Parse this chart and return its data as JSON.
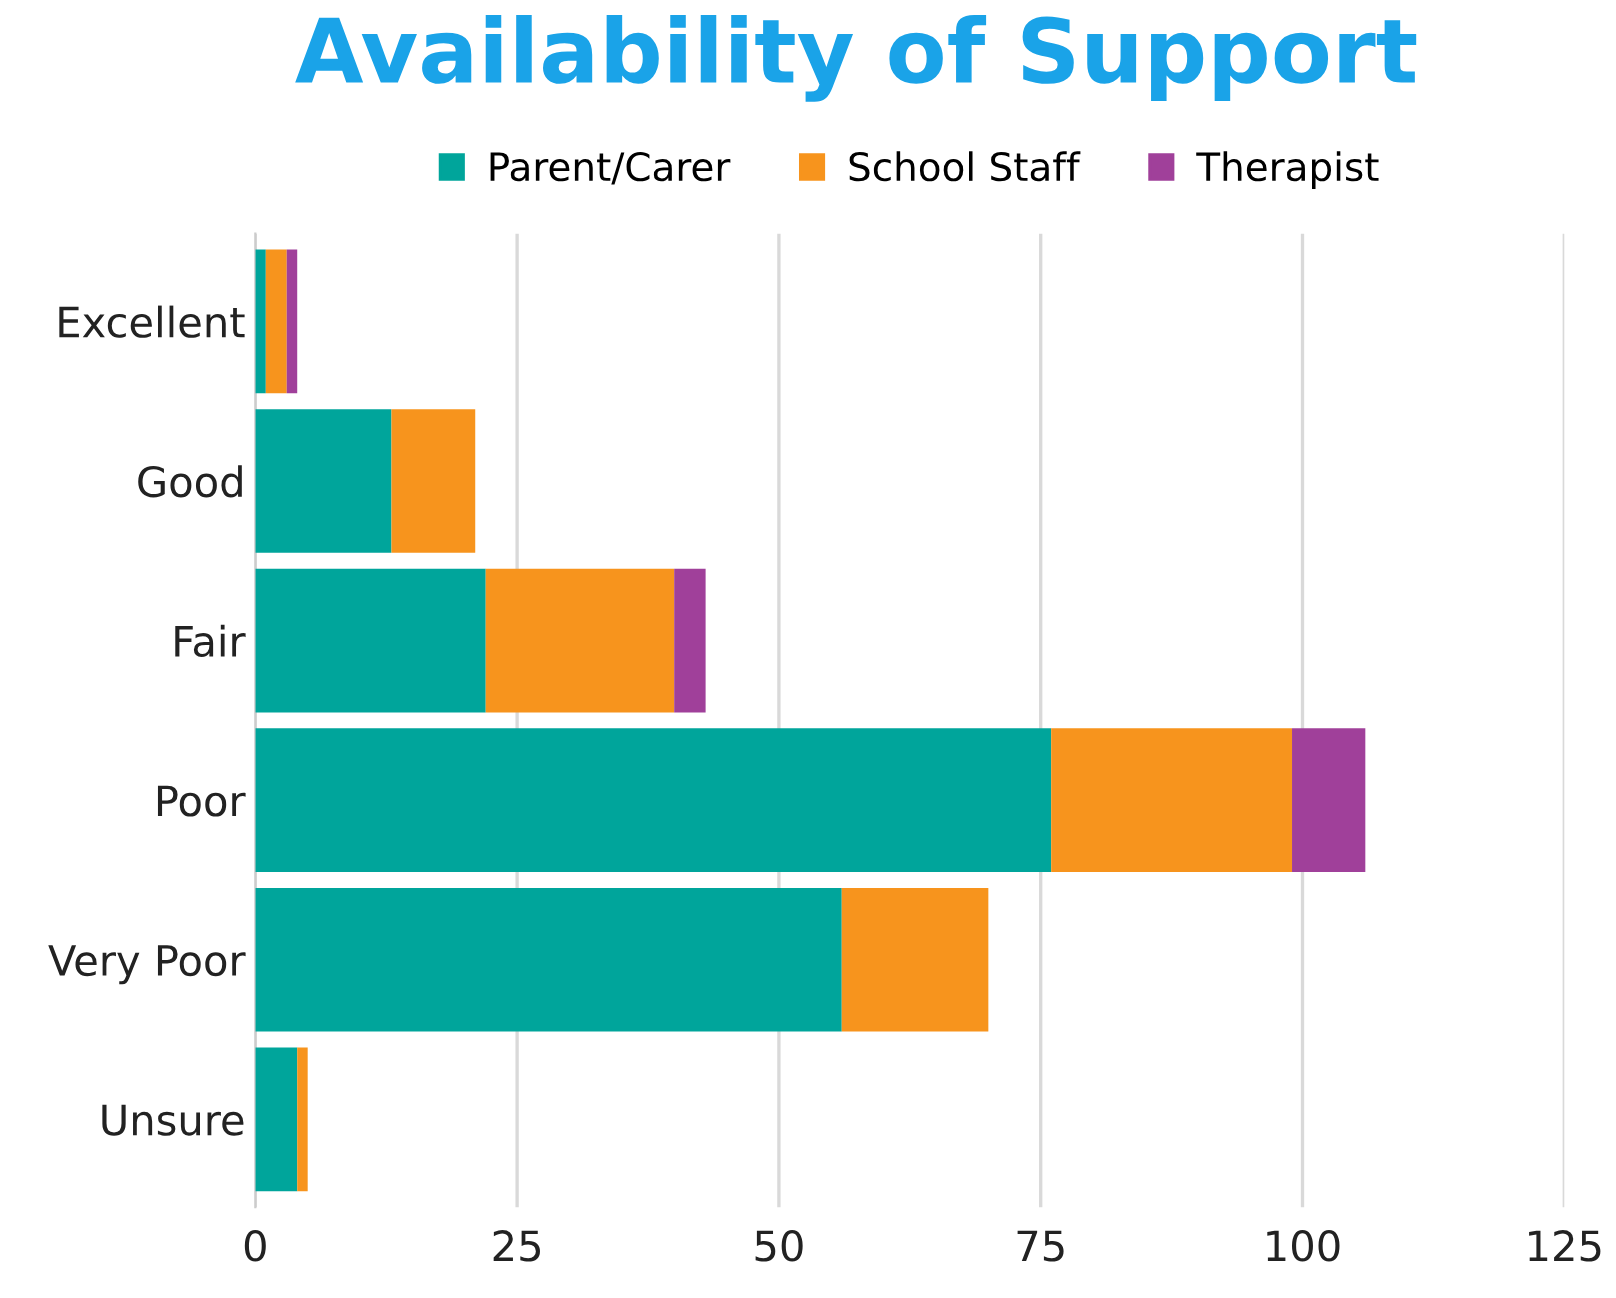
{
  "chart_data": {
    "type": "bar",
    "title": "Availability of Support",
    "orientation": "horizontal",
    "stacked": true,
    "categories": [
      "Excellent",
      "Good",
      "Fair",
      "Poor",
      "Very Poor",
      "Unsure"
    ],
    "series": [
      {
        "name": "Parent/Carer",
        "color": "#00a59b",
        "values": [
          1,
          13,
          22,
          76,
          56,
          4
        ]
      },
      {
        "name": "School Staff",
        "color": "#f7941d",
        "values": [
          2,
          8,
          18,
          23,
          14,
          1
        ]
      },
      {
        "name": "Therapist",
        "color": "#a0409a",
        "values": [
          1,
          0,
          3,
          7,
          0,
          0
        ]
      }
    ],
    "xlim": [
      0,
      125
    ],
    "xticks": [
      0,
      25,
      50,
      75,
      100,
      125
    ],
    "grid": "x",
    "legend": "top"
  }
}
